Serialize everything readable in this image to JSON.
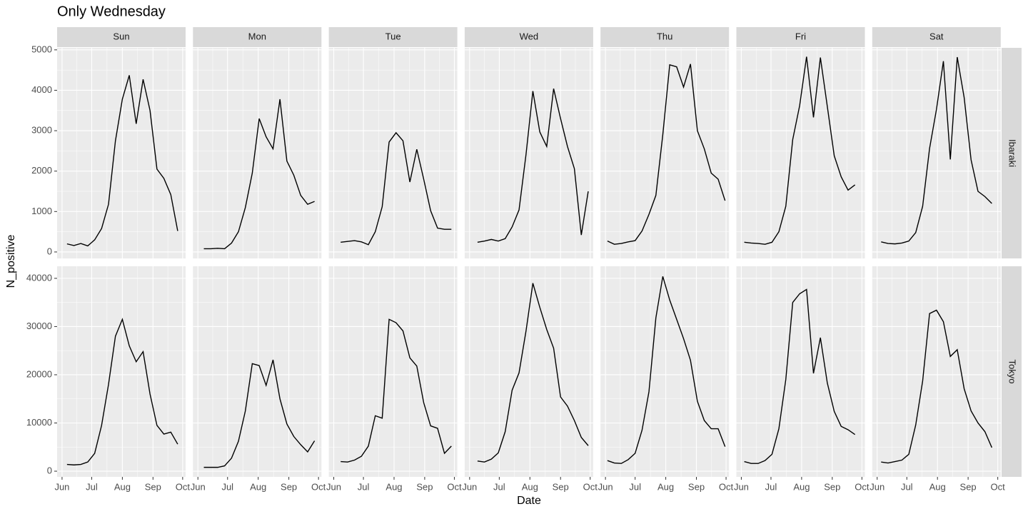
{
  "chart_data": {
    "type": "line",
    "title": "Only Wednesday",
    "xlabel": "Date",
    "ylabel": "N_positive",
    "color": "#000000",
    "grid": true,
    "columns": [
      "Sun",
      "Mon",
      "Tue",
      "Wed",
      "Thu",
      "Fri",
      "Sat"
    ],
    "xlim": [
      -5,
      125
    ],
    "xticks": [
      {
        "value": 0,
        "label": "Jun"
      },
      {
        "value": 30,
        "label": "Jul"
      },
      {
        "value": 61,
        "label": "Aug"
      },
      {
        "value": 92,
        "label": "Sep"
      },
      {
        "value": 122,
        "label": "Oct"
      }
    ],
    "rows": [
      {
        "name": "Ibaraki",
        "ylim": [
          -160,
          5050
        ],
        "yticks": [
          0,
          1000,
          2000,
          3000,
          4000,
          5000
        ]
      },
      {
        "name": "Tokyo",
        "ylim": [
          -1180,
          42500
        ],
        "yticks": [
          0,
          10000,
          20000,
          30000,
          40000
        ]
      }
    ],
    "panels": [
      [
        {
          "x": [
            5,
            12,
            19,
            26,
            33,
            40,
            47,
            54,
            61,
            68,
            75,
            82,
            89,
            96,
            103,
            110,
            117
          ],
          "values": [
            200,
            160,
            210,
            150,
            300,
            580,
            1180,
            2750,
            3780,
            4370,
            3170,
            4270,
            3500,
            2050,
            1820,
            1420,
            520
          ]
        },
        {
          "x": [
            6,
            13,
            20,
            27,
            34,
            41,
            48,
            55,
            62,
            69,
            76,
            83,
            90,
            97,
            104,
            111,
            118
          ],
          "values": [
            80,
            80,
            90,
            80,
            220,
            500,
            1100,
            1950,
            3300,
            2850,
            2550,
            3780,
            2250,
            1900,
            1400,
            1180,
            1250
          ]
        },
        {
          "x": [
            7,
            14,
            21,
            28,
            35,
            42,
            49,
            56,
            63,
            70,
            77,
            84,
            91,
            98,
            105,
            112,
            119
          ],
          "values": [
            240,
            260,
            280,
            250,
            180,
            500,
            1120,
            2720,
            2950,
            2750,
            1730,
            2540,
            1800,
            1020,
            590,
            560,
            560
          ]
        },
        {
          "x": [
            8,
            15,
            22,
            29,
            36,
            43,
            50,
            57,
            64,
            71,
            78,
            85,
            92,
            99,
            106,
            113,
            120
          ],
          "values": [
            240,
            270,
            310,
            270,
            330,
            620,
            1040,
            2400,
            3980,
            2970,
            2610,
            4040,
            3300,
            2610,
            2060,
            420,
            1500
          ]
        },
        {
          "x": [
            2,
            9,
            16,
            23,
            30,
            37,
            44,
            51,
            58,
            65,
            72,
            79,
            86,
            93,
            100,
            107,
            114,
            121
          ],
          "values": [
            270,
            190,
            210,
            250,
            280,
            520,
            930,
            1400,
            2900,
            4630,
            4580,
            4080,
            4650,
            3000,
            2550,
            1950,
            1800,
            1270
          ]
        },
        {
          "x": [
            3,
            10,
            17,
            24,
            31,
            38,
            45,
            52,
            59,
            66,
            73,
            80,
            87,
            94,
            101,
            108,
            115
          ],
          "values": [
            240,
            220,
            210,
            190,
            240,
            500,
            1130,
            2780,
            3620,
            4830,
            3330,
            4810,
            3600,
            2380,
            1860,
            1530,
            1660
          ]
        },
        {
          "x": [
            4,
            11,
            18,
            25,
            32,
            39,
            46,
            53,
            60,
            67,
            74,
            81,
            88,
            95,
            102,
            109,
            116
          ],
          "values": [
            250,
            210,
            200,
            220,
            270,
            480,
            1130,
            2560,
            3530,
            4720,
            2290,
            4820,
            3820,
            2280,
            1500,
            1370,
            1200
          ]
        }
      ],
      [
        {
          "x": [
            5,
            12,
            19,
            26,
            33,
            40,
            47,
            54,
            61,
            68,
            75,
            82,
            89,
            96,
            103,
            110,
            117
          ],
          "values": [
            1400,
            1300,
            1400,
            1900,
            3700,
            9500,
            18000,
            28000,
            31500,
            26000,
            22700,
            24800,
            16000,
            9500,
            7700,
            8100,
            5600
          ]
        },
        {
          "x": [
            6,
            13,
            20,
            27,
            34,
            41,
            48,
            55,
            62,
            69,
            76,
            83,
            90,
            97,
            104,
            111,
            118
          ],
          "values": [
            800,
            800,
            800,
            1100,
            2700,
            6200,
            12500,
            22300,
            21900,
            17800,
            23100,
            15000,
            9800,
            7200,
            5500,
            4000,
            6300
          ]
        },
        {
          "x": [
            7,
            14,
            21,
            28,
            35,
            42,
            49,
            56,
            63,
            70,
            77,
            84,
            91,
            98,
            105,
            112,
            119
          ],
          "values": [
            2000,
            1900,
            2300,
            3100,
            5200,
            11500,
            11000,
            31500,
            30800,
            29100,
            23500,
            21800,
            14200,
            9400,
            8900,
            3700,
            5200
          ]
        },
        {
          "x": [
            8,
            15,
            22,
            29,
            36,
            43,
            50,
            57,
            64,
            71,
            78,
            85,
            92,
            99,
            106,
            113,
            120
          ],
          "values": [
            2100,
            1900,
            2500,
            3800,
            8200,
            16800,
            20400,
            29000,
            39000,
            34000,
            29400,
            25500,
            15400,
            13500,
            10500,
            7000,
            5300
          ]
        },
        {
          "x": [
            2,
            9,
            16,
            23,
            30,
            37,
            44,
            51,
            58,
            65,
            72,
            79,
            86,
            93,
            100,
            107,
            114,
            121
          ],
          "values": [
            2200,
            1700,
            1600,
            2400,
            3700,
            8500,
            16500,
            31800,
            40400,
            35500,
            31500,
            27500,
            23000,
            14500,
            10500,
            8800,
            8800,
            5100
          ]
        },
        {
          "x": [
            3,
            10,
            17,
            24,
            31,
            38,
            45,
            52,
            59,
            66,
            73,
            80,
            87,
            94,
            101,
            108,
            115
          ],
          "values": [
            2000,
            1600,
            1600,
            2200,
            3500,
            8800,
            19000,
            35000,
            36800,
            37700,
            20300,
            27700,
            18300,
            12400,
            9300,
            8600,
            7600
          ]
        },
        {
          "x": [
            4,
            11,
            18,
            25,
            32,
            39,
            46,
            53,
            60,
            67,
            74,
            81,
            88,
            95,
            102,
            109,
            116
          ],
          "values": [
            1900,
            1700,
            2000,
            2300,
            3500,
            9600,
            18700,
            32700,
            33400,
            31000,
            23800,
            25200,
            17100,
            12500,
            10000,
            8200,
            4900
          ]
        }
      ]
    ]
  }
}
